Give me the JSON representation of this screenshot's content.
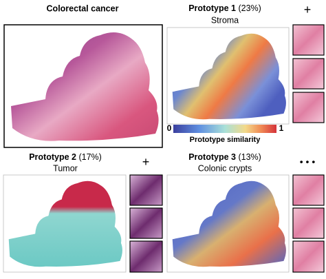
{
  "panels": [
    {
      "title": "Colorectal cancer"
    },
    {
      "title": "Prototype 1",
      "percent": "(23%)",
      "label": "Stroma",
      "marker": "+"
    },
    {
      "title": "Prototype 2",
      "percent": "(17%)",
      "label": "Tumor",
      "marker": "+"
    },
    {
      "title": "Prototype 3",
      "percent": "(13%)",
      "label": "Colonic crypts",
      "marker": "• • •"
    }
  ],
  "colorbar": {
    "min": 0,
    "max": 1,
    "label": "Prototype similarity"
  }
}
